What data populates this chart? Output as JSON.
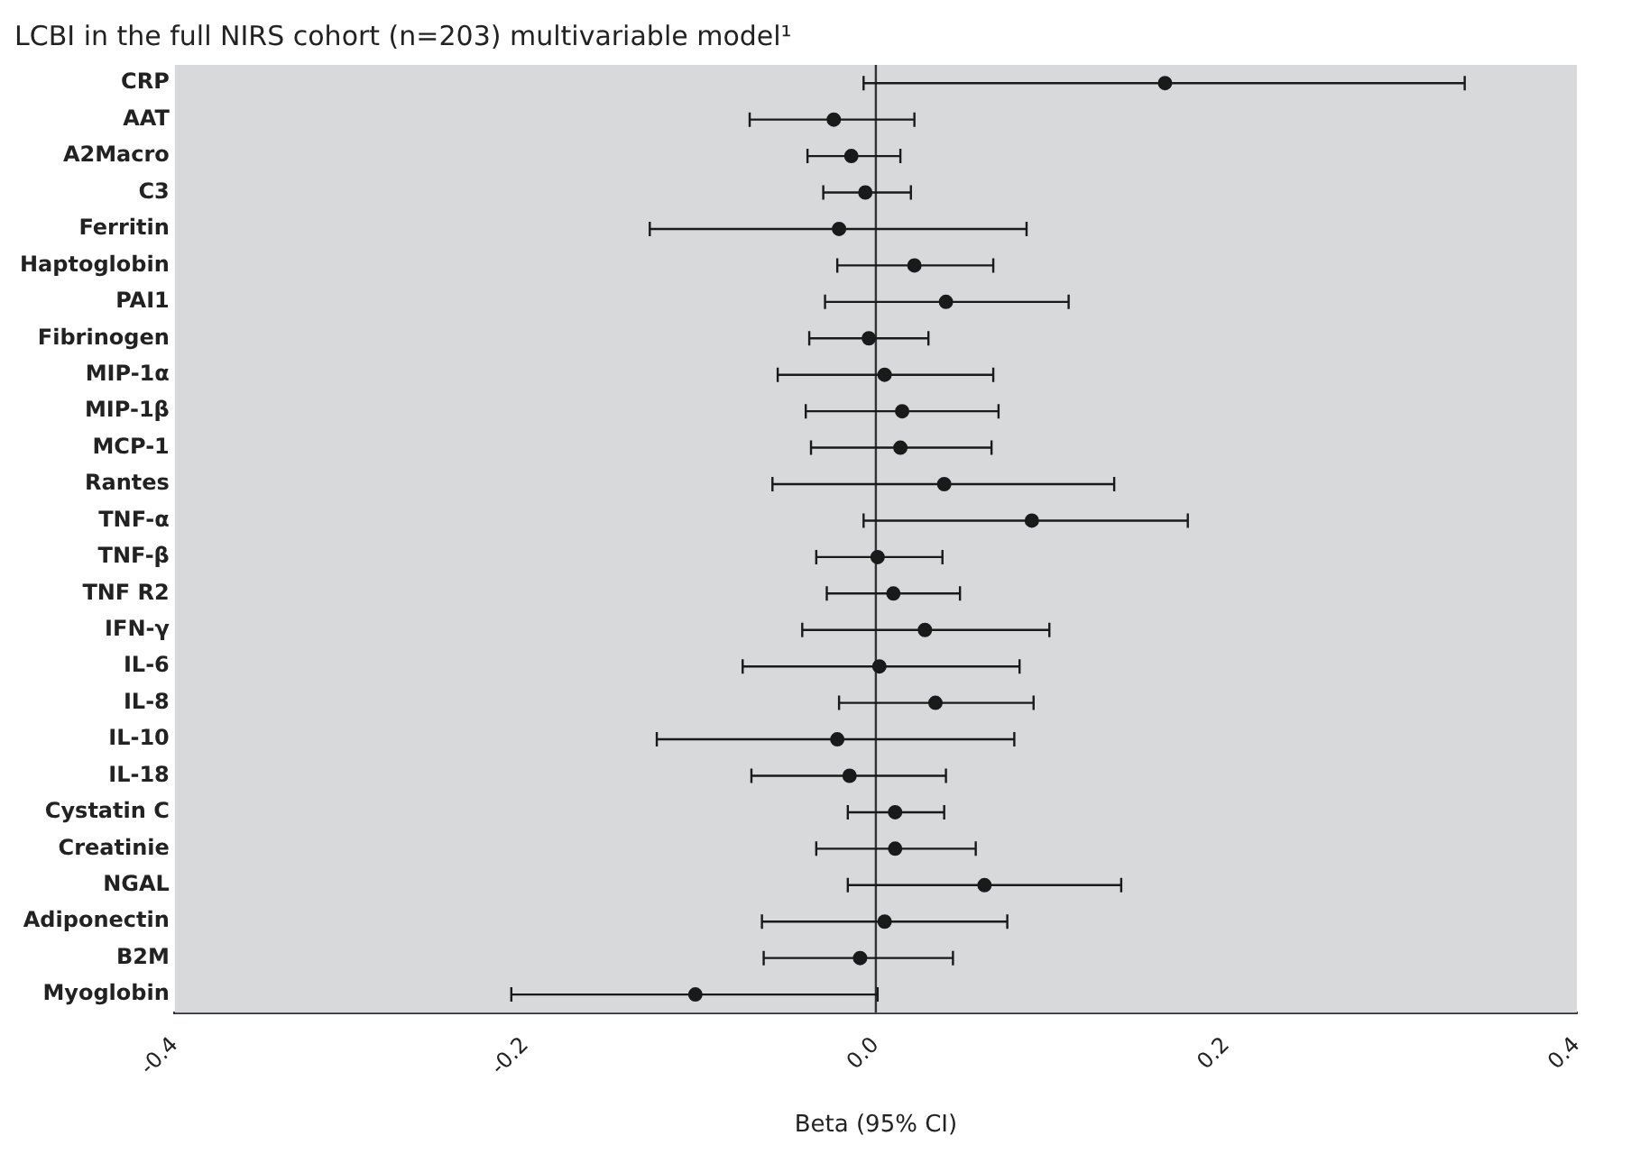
{
  "chart_data": {
    "type": "scatter",
    "orientation": "horizontal",
    "title": "LCBI in the full NIRS cohort (n=203) multivariable model¹",
    "xlabel": "Beta (95% CI)",
    "categories": [
      "CRP",
      "AAT",
      "A2Macro",
      "C3",
      "Ferritin",
      "Haptoglobin",
      "PAI1",
      "Fibrinogen",
      "MIP-1α",
      "MIP-1β",
      "MCP-1",
      "Rantes",
      "TNF-α",
      "TNF-β",
      "TNF R2",
      "IFN-γ",
      "IL-6",
      "IL-8",
      "IL-10",
      "IL-18",
      "Cystatin C",
      "Creatinie",
      "NGAL",
      "Adiponectin",
      "B2M",
      "Myoglobin"
    ],
    "series": [
      {
        "color": "#1a1a1a",
        "values": [
          0.165,
          -0.024,
          -0.014,
          -0.006,
          -0.021,
          0.022,
          0.04,
          -0.004,
          0.005,
          0.015,
          0.014,
          0.039,
          0.089,
          0.001,
          0.01,
          0.028,
          0.002,
          0.034,
          -0.022,
          -0.015,
          0.011,
          0.011,
          0.062,
          0.005,
          -0.009,
          -0.103
        ],
        "errors": [
          [
            -0.007,
            0.336
          ],
          [
            -0.072,
            0.022
          ],
          [
            -0.039,
            0.014
          ],
          [
            -0.03,
            0.02
          ],
          [
            -0.129,
            0.086
          ],
          [
            -0.022,
            0.067
          ],
          [
            -0.029,
            0.11
          ],
          [
            -0.038,
            0.03
          ],
          [
            -0.056,
            0.067
          ],
          [
            -0.04,
            0.07
          ],
          [
            -0.037,
            0.066
          ],
          [
            -0.059,
            0.136
          ],
          [
            -0.007,
            0.178
          ],
          [
            -0.034,
            0.038
          ],
          [
            -0.028,
            0.048
          ],
          [
            -0.042,
            0.099
          ],
          [
            -0.076,
            0.082
          ],
          [
            -0.021,
            0.09
          ],
          [
            -0.125,
            0.079
          ],
          [
            -0.071,
            0.04
          ],
          [
            -0.016,
            0.039
          ],
          [
            -0.034,
            0.057
          ],
          [
            -0.016,
            0.14
          ],
          [
            -0.065,
            0.075
          ],
          [
            -0.064,
            0.044
          ],
          [
            -0.208,
            0.001
          ]
        ]
      }
    ],
    "xlim": [
      -0.4,
      0.4
    ],
    "xticks": [
      -0.4,
      -0.2,
      {
        "value": 0,
        "label": "0.0"
      },
      0.2,
      0.4
    ],
    "ref_lines": [
      {
        "axis": "x",
        "value": 0,
        "color": "#333333"
      }
    ],
    "marker": "circle",
    "grid": false,
    "legend": false
  }
}
